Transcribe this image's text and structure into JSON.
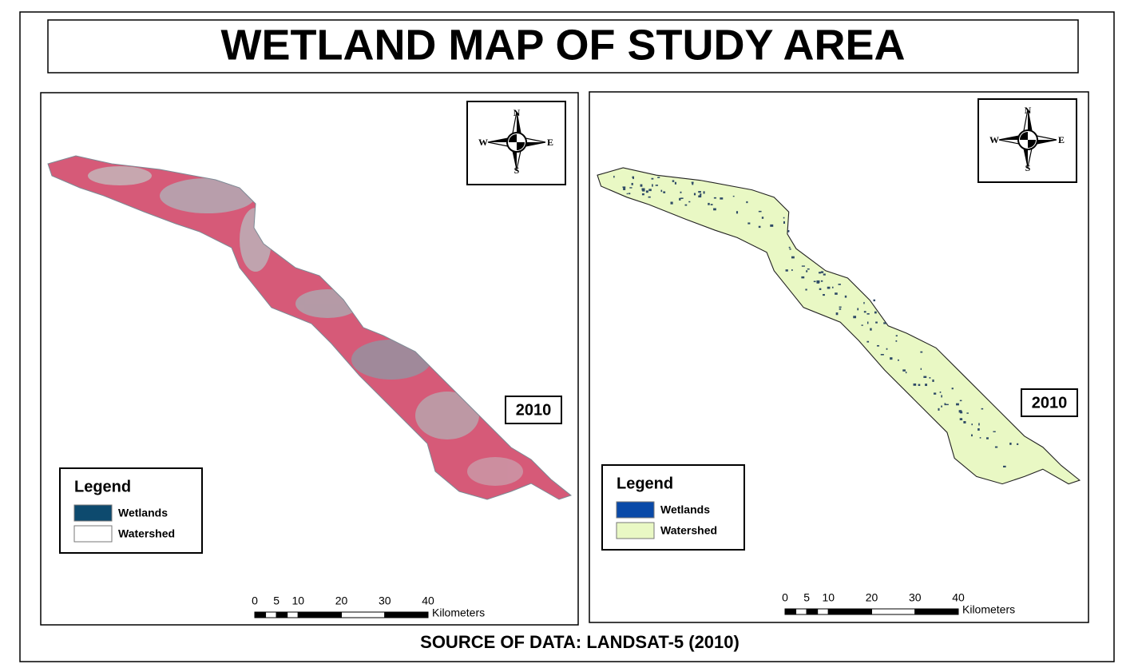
{
  "title": "WETLAND MAP OF STUDY AREA",
  "source": "SOURCE OF DATA: LANDSAT-5 (2010)",
  "panels": [
    {
      "year": "2010",
      "compass": {
        "n": "N",
        "s": "S",
        "w": "W",
        "e": "E"
      },
      "legend": {
        "title": "Legend",
        "items": [
          {
            "label": "Wetlands",
            "color": "#0d4a6e"
          },
          {
            "label": "Watershed",
            "color": "#ffffff"
          }
        ]
      },
      "scale_bar": {
        "ticks": [
          0,
          5,
          10,
          20,
          30,
          40
        ],
        "unit": "Kilometers"
      }
    },
    {
      "year": "2010",
      "compass": {
        "n": "N",
        "s": "S",
        "w": "W",
        "e": "E"
      },
      "legend": {
        "title": "Legend",
        "items": [
          {
            "label": "Wetlands",
            "color": "#0a4aa8"
          },
          {
            "label": "Watershed",
            "color": "#e9f8c4"
          }
        ]
      },
      "scale_bar": {
        "ticks": [
          0,
          5,
          10,
          20,
          30,
          40
        ],
        "unit": "Kilometers"
      }
    }
  ]
}
